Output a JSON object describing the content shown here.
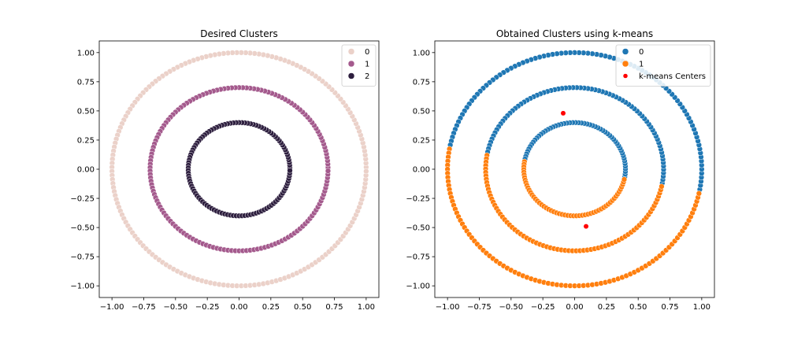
{
  "chart_data": [
    {
      "type": "scatter",
      "title": "Desired Clusters",
      "xlabel": "",
      "ylabel": "",
      "xlim": [
        -1.1,
        1.1
      ],
      "ylim": [
        -1.1,
        1.1
      ],
      "xticks": [
        -1.0,
        -0.75,
        -0.5,
        -0.25,
        0.0,
        0.25,
        0.5,
        0.75,
        1.0
      ],
      "yticks": [
        -1.0,
        -0.75,
        -0.5,
        -0.25,
        0.0,
        0.25,
        0.5,
        0.75,
        1.0
      ],
      "xtick_labels": [
        "−1.00",
        "−0.75",
        "−0.50",
        "−0.25",
        "0.00",
        "0.25",
        "0.50",
        "0.75",
        "1.00"
      ],
      "ytick_labels": [
        "−1.00",
        "−0.75",
        "−0.50",
        "−0.25",
        "0.00",
        "0.25",
        "0.50",
        "0.75",
        "1.00"
      ],
      "grid": false,
      "legend_position": "top-right",
      "series": [
        {
          "name": "0",
          "shape": "circle",
          "radius": 1.0,
          "angle_range_deg": [
            0,
            360
          ],
          "n_points": 180,
          "color": "#ebd1c9"
        },
        {
          "name": "1",
          "shape": "circle",
          "radius": 0.7,
          "angle_range_deg": [
            0,
            360
          ],
          "n_points": 150,
          "color": "#a45a8d"
        },
        {
          "name": "2",
          "shape": "circle",
          "radius": 0.4,
          "angle_range_deg": [
            0,
            360
          ],
          "n_points": 110,
          "color": "#2d1e3e"
        }
      ]
    },
    {
      "type": "scatter",
      "title": "Obtained Clusters using k-means",
      "xlabel": "",
      "ylabel": "",
      "xlim": [
        -1.1,
        1.1
      ],
      "ylim": [
        -1.1,
        1.1
      ],
      "xticks": [
        -1.0,
        -0.75,
        -0.5,
        -0.25,
        0.0,
        0.25,
        0.5,
        0.75,
        1.0
      ],
      "yticks": [
        -1.0,
        -0.75,
        -0.5,
        -0.25,
        0.0,
        0.25,
        0.5,
        0.75,
        1.0
      ],
      "xtick_labels": [
        "−1.00",
        "−0.75",
        "−0.50",
        "−0.25",
        "0.00",
        "0.25",
        "0.50",
        "0.75",
        "1.00"
      ],
      "ytick_labels": [
        "−1.00",
        "−0.75",
        "−0.50",
        "−0.25",
        "0.00",
        "0.25",
        "0.50",
        "0.75",
        "1.00"
      ],
      "grid": false,
      "legend_position": "top-right",
      "series": [
        {
          "name": "0",
          "color": "#1f77b4",
          "arcs": [
            {
              "radius": 1.0,
              "angle_range_deg": [
                -11,
                169
              ],
              "n_points": 90
            },
            {
              "radius": 0.7,
              "angle_range_deg": [
                -11,
                169
              ],
              "n_points": 75
            },
            {
              "radius": 0.4,
              "angle_range_deg": [
                -11,
                169
              ],
              "n_points": 55
            }
          ]
        },
        {
          "name": "1",
          "color": "#ff7f0e",
          "arcs": [
            {
              "radius": 1.0,
              "angle_range_deg": [
                169,
                349
              ],
              "n_points": 90
            },
            {
              "radius": 0.7,
              "angle_range_deg": [
                169,
                349
              ],
              "n_points": 75
            },
            {
              "radius": 0.4,
              "angle_range_deg": [
                169,
                349
              ],
              "n_points": 55
            }
          ]
        },
        {
          "name": "k-means Centers",
          "color": "#ff0000",
          "points": [
            [
              -0.09,
              0.48
            ],
            [
              0.09,
              -0.49
            ]
          ]
        }
      ]
    }
  ]
}
